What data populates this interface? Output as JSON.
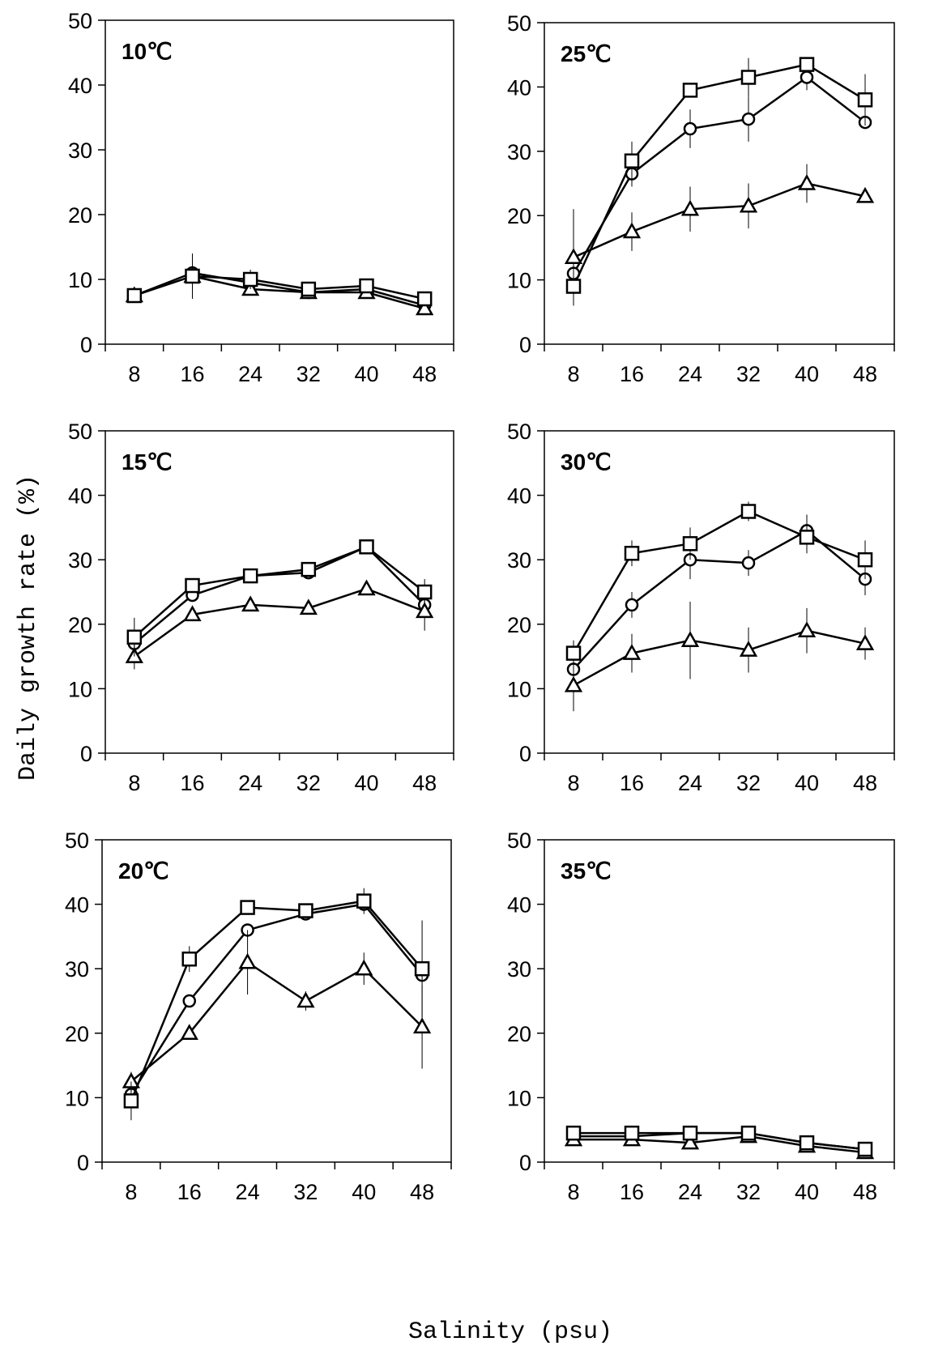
{
  "figure": {
    "ylabel": "Daily growth rate (%)",
    "xlabel": "Salinity (psu)"
  },
  "chart_data": [
    {
      "type": "line",
      "title": "10℃",
      "x": [
        8,
        16,
        24,
        32,
        40,
        48
      ],
      "ylim": [
        0,
        50
      ],
      "yticks": [
        0,
        10,
        20,
        30,
        40,
        50
      ],
      "series": [
        {
          "marker": "circle",
          "values": [
            7.5,
            11,
            9.5,
            8,
            8.5,
            6
          ],
          "err": [
            0,
            0,
            0,
            0,
            0,
            0
          ]
        },
        {
          "marker": "triangle",
          "values": [
            7.5,
            10.5,
            8.5,
            8,
            8,
            5.5
          ],
          "err": [
            0,
            0,
            0,
            0,
            0,
            0
          ]
        },
        {
          "marker": "square",
          "values": [
            7.5,
            10.5,
            10,
            8.5,
            9,
            7
          ],
          "err": [
            0,
            3.5,
            1.5,
            0,
            0,
            0
          ]
        }
      ]
    },
    {
      "type": "line",
      "title": "25℃",
      "x": [
        8,
        16,
        24,
        32,
        40,
        48
      ],
      "ylim": [
        0,
        50
      ],
      "yticks": [
        0,
        10,
        20,
        30,
        40,
        50
      ],
      "series": [
        {
          "marker": "circle",
          "values": [
            11,
            26.5,
            33.5,
            35,
            41.5,
            34.5
          ],
          "err": [
            0,
            2,
            3,
            3.5,
            2,
            0
          ]
        },
        {
          "marker": "triangle",
          "values": [
            13.5,
            17.5,
            21,
            21.5,
            25,
            23
          ],
          "err": [
            7.5,
            3,
            3.5,
            3.5,
            3,
            0
          ]
        },
        {
          "marker": "square",
          "values": [
            9,
            28.5,
            39.5,
            41.5,
            43.5,
            38
          ],
          "err": [
            3,
            3,
            1,
            3,
            0,
            4
          ]
        }
      ]
    },
    {
      "type": "line",
      "title": "15℃",
      "x": [
        8,
        16,
        24,
        32,
        40,
        48
      ],
      "ylim": [
        0,
        50
      ],
      "yticks": [
        0,
        10,
        20,
        30,
        40,
        50
      ],
      "series": [
        {
          "marker": "circle",
          "values": [
            17,
            24.5,
            27.5,
            28,
            32,
            23
          ],
          "err": [
            0,
            0,
            0,
            0,
            0,
            0
          ]
        },
        {
          "marker": "triangle",
          "values": [
            15,
            21.5,
            23,
            22.5,
            25.5,
            22
          ],
          "err": [
            2,
            0,
            0,
            0,
            0,
            3
          ]
        },
        {
          "marker": "square",
          "values": [
            18,
            26,
            27.5,
            28.5,
            32,
            25
          ],
          "err": [
            3,
            0,
            0,
            0,
            0,
            2
          ]
        }
      ]
    },
    {
      "type": "line",
      "title": "30℃",
      "x": [
        8,
        16,
        24,
        32,
        40,
        48
      ],
      "ylim": [
        0,
        50
      ],
      "yticks": [
        0,
        10,
        20,
        30,
        40,
        50
      ],
      "series": [
        {
          "marker": "circle",
          "values": [
            13,
            23,
            30,
            29.5,
            34.5,
            27
          ],
          "err": [
            3,
            2,
            3,
            2,
            2.5,
            2.5
          ]
        },
        {
          "marker": "triangle",
          "values": [
            10.5,
            15.5,
            17.5,
            16,
            19,
            17
          ],
          "err": [
            4,
            3,
            6,
            3.5,
            3.5,
            2.5
          ]
        },
        {
          "marker": "square",
          "values": [
            15.5,
            31,
            32.5,
            37.5,
            33.5,
            30
          ],
          "err": [
            2,
            2,
            2.5,
            1.5,
            2.5,
            3
          ]
        }
      ]
    },
    {
      "type": "line",
      "title": "20℃",
      "x": [
        8,
        16,
        24,
        32,
        40,
        48
      ],
      "ylim": [
        0,
        50
      ],
      "yticks": [
        0,
        10,
        20,
        30,
        40,
        50
      ],
      "series": [
        {
          "marker": "circle",
          "values": [
            10.5,
            25,
            36,
            38.5,
            40,
            29
          ],
          "err": [
            2,
            0,
            0,
            0,
            0,
            0
          ]
        },
        {
          "marker": "triangle",
          "values": [
            12.5,
            20,
            31,
            25,
            30,
            21
          ],
          "err": [
            1.5,
            0,
            5,
            1.5,
            2.5,
            6.5
          ]
        },
        {
          "marker": "square",
          "values": [
            9.5,
            31.5,
            39.5,
            39,
            40.5,
            30
          ],
          "err": [
            3,
            2,
            0,
            0,
            2,
            7.5
          ]
        }
      ]
    },
    {
      "type": "line",
      "title": "35℃",
      "x": [
        8,
        16,
        24,
        32,
        40,
        48
      ],
      "ylim": [
        0,
        50
      ],
      "yticks": [
        0,
        10,
        20,
        30,
        40,
        50
      ],
      "series": [
        {
          "marker": "circle",
          "values": [
            4,
            4,
            4.5,
            4.5,
            3,
            2
          ],
          "err": [
            0,
            0,
            0,
            0,
            0,
            0
          ]
        },
        {
          "marker": "triangle",
          "values": [
            3.5,
            3.5,
            3,
            4,
            2.5,
            1.5
          ],
          "err": [
            0,
            0,
            0,
            0,
            0,
            0
          ]
        },
        {
          "marker": "square",
          "values": [
            4.5,
            4.5,
            4.5,
            4.5,
            3,
            2
          ],
          "err": [
            0,
            0,
            0,
            0,
            0,
            0
          ]
        }
      ]
    }
  ]
}
